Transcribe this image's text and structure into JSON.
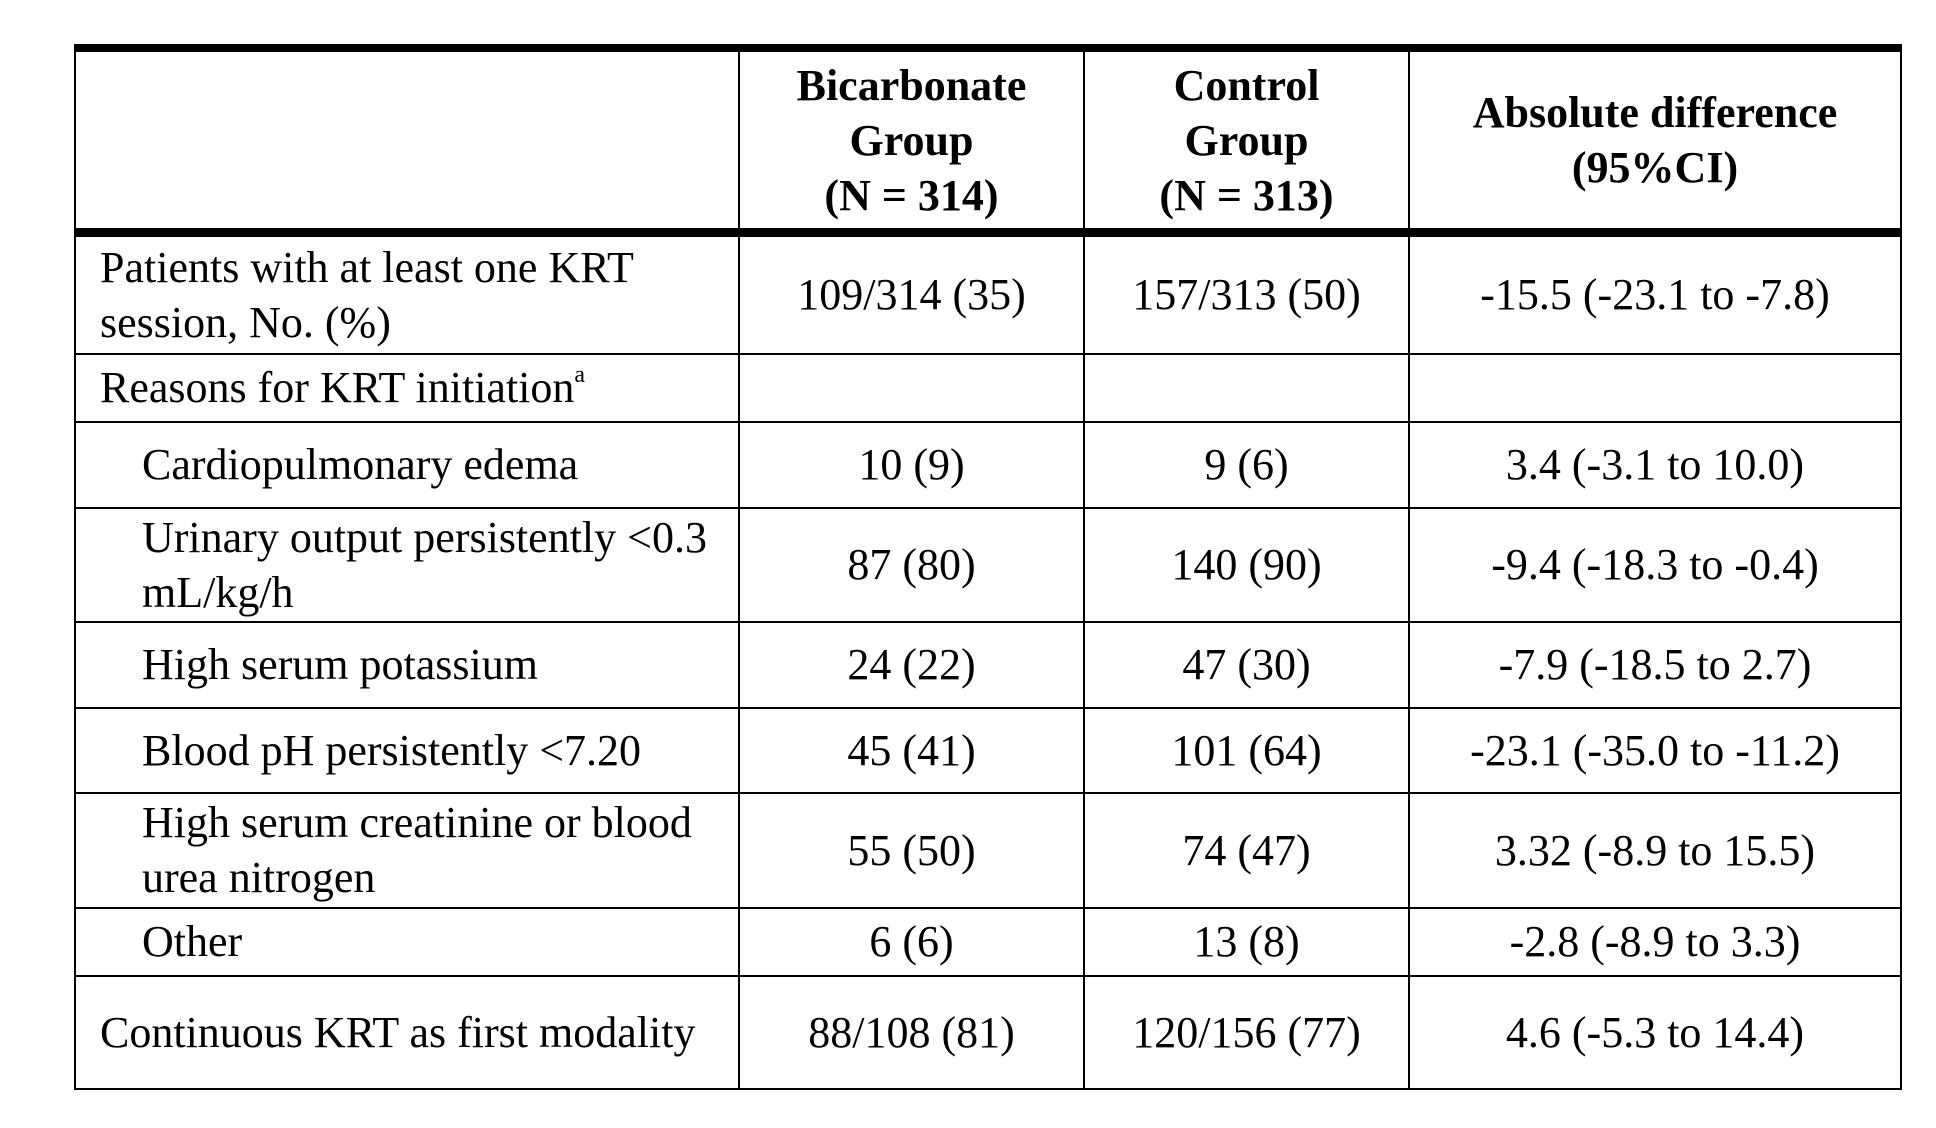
{
  "table": {
    "header": [
      [],
      [
        "Bicarbonate",
        "Group",
        "(N = 314)"
      ],
      [
        "Control",
        "Group",
        "(N = 313)"
      ],
      [
        "Absolute difference",
        "(95%CI)"
      ]
    ],
    "rows": [
      {
        "label": "Patients with at least one KRT session, No. (%)",
        "cells": [
          "109/314 (35)",
          "157/313 (50)",
          "-15.5 (-23.1 to -7.8)"
        ]
      },
      {
        "label": "Reasons for KRT initiation",
        "superscript": "a",
        "subrows": [
          {
            "label": "Cardiopulmonary edema",
            "cells": [
              "10 (9)",
              "9 (6)",
              "3.4 (-3.1 to 10.0)"
            ]
          },
          {
            "label": "Urinary output persistently <0.3 mL/kg/h",
            "cells": [
              "87 (80)",
              "140 (90)",
              "-9.4 (-18.3 to -0.4)"
            ]
          },
          {
            "label": "High serum potassium",
            "cells": [
              "24 (22)",
              "47 (30)",
              "-7.9 (-18.5 to 2.7)"
            ]
          },
          {
            "label": "Blood pH persistently <7.20",
            "cells": [
              "45 (41)",
              "101 (64)",
              "-23.1 (-35.0 to -11.2)"
            ]
          },
          {
            "label": "High serum creatinine or blood urea nitrogen",
            "cells": [
              "55 (50)",
              "74 (47)",
              "3.32 (-8.9 to 15.5)"
            ]
          },
          {
            "label": "Other",
            "cells": [
              "6 (6)",
              "13 (8)",
              "-2.8 (-8.9 to 3.3)"
            ]
          }
        ]
      },
      {
        "label": "Continuous KRT as first modality",
        "cells": [
          "88/108 (81)",
          "120/156 (77)",
          "4.6 (-5.3 to 14.4)"
        ]
      }
    ]
  }
}
